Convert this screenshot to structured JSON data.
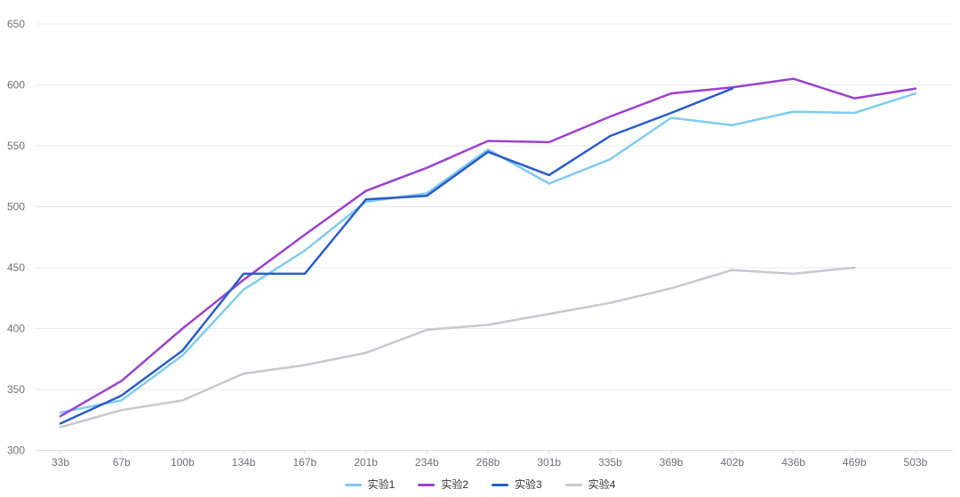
{
  "chart_data": {
    "type": "line",
    "title": "",
    "xlabel": "",
    "ylabel": "",
    "categories": [
      "33b",
      "67b",
      "100b",
      "134b",
      "167b",
      "201b",
      "234b",
      "268b",
      "301b",
      "335b",
      "369b",
      "402b",
      "436b",
      "469b",
      "503b"
    ],
    "series": [
      {
        "name": "实验1",
        "color": "#7FCBEF",
        "values": [
          331,
          341,
          378,
          432,
          464,
          504,
          511,
          547,
          519,
          539,
          573,
          567,
          578,
          577,
          593
        ]
      },
      {
        "name": "实验2",
        "color": "#9B41D0",
        "values": [
          328,
          357,
          400,
          440,
          477,
          513,
          532,
          554,
          553,
          574,
          593,
          598,
          605,
          589,
          597
        ]
      },
      {
        "name": "实验3",
        "color": "#2A5CC8",
        "values": [
          322,
          345,
          382,
          445,
          445,
          506,
          509,
          545,
          526,
          558,
          577,
          597,
          null,
          null,
          null
        ]
      },
      {
        "name": "实验4",
        "color": "#C5C9CE",
        "values": [
          319,
          333,
          341,
          363,
          370,
          380,
          399,
          403,
          412,
          421,
          433,
          448,
          445,
          450,
          null
        ]
      }
    ],
    "ylim": [
      300,
      650
    ],
    "y_ticks": [
      300,
      350,
      400,
      450,
      500,
      550,
      600,
      650
    ],
    "grid": true,
    "legend_position": "bottom",
    "background": "#FFFFFF",
    "gridline_color": "#E9E9EC",
    "axis_line_color": "#D9DCE0",
    "axis_label_color": "#6E7079"
  }
}
